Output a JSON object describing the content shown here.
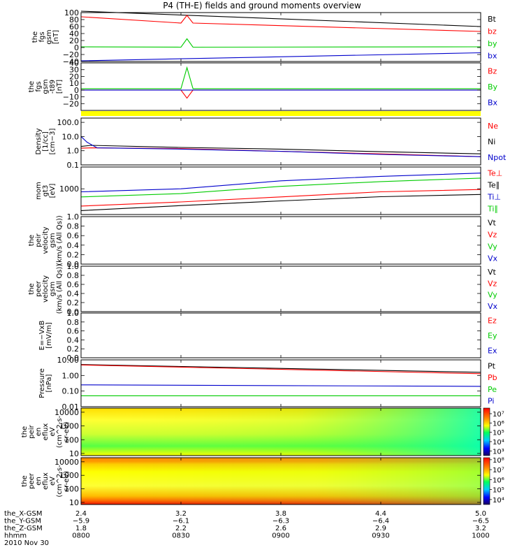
{
  "title": "P4 (TH-E) fields and ground moments overview",
  "colors": {
    "black": "#000000",
    "red": "#ff0000",
    "green": "#00cc00",
    "blue": "#0000cc",
    "yellow": "#ffff00",
    "axis": "#000000"
  },
  "chart_data": [
    {
      "type": "line",
      "ylabel": [
        "the",
        "fgs",
        "gsm",
        "[nT]"
      ],
      "ylim": [
        -40,
        100
      ],
      "yticks": [
        "100",
        "80",
        "60",
        "40",
        "20",
        "0",
        "−20",
        "−40"
      ],
      "ytick_values": [
        100,
        80,
        60,
        40,
        20,
        0,
        -20,
        -40
      ],
      "series": [
        {
          "name": "Bt",
          "color": "black",
          "x": [
            8.0,
            10.0
          ],
          "values": [
            104,
            60
          ]
        },
        {
          "name": "bz",
          "color": "red",
          "x": [
            8.0,
            8.5,
            8.53,
            8.56,
            10.0
          ],
          "values": [
            88,
            70,
            92,
            70,
            46
          ]
        },
        {
          "name": "by",
          "color": "green",
          "x": [
            8.0,
            8.5,
            8.53,
            8.56,
            10.0
          ],
          "values": [
            2,
            1,
            25,
            1,
            2
          ]
        },
        {
          "name": "bx",
          "color": "blue",
          "x": [
            8.0,
            10.0
          ],
          "values": [
            -38,
            -15
          ]
        }
      ]
    },
    {
      "type": "line",
      "ylabel": [
        "the",
        "fgs",
        "gsm",
        "-t89",
        "[nT]"
      ],
      "ylim": [
        -30,
        40
      ],
      "yticks": [
        "40",
        "30",
        "20",
        "10",
        "0",
        "−10",
        "−20"
      ],
      "ytick_values": [
        40,
        30,
        20,
        10,
        0,
        -10,
        -20
      ],
      "series": [
        {
          "name": "Bz",
          "color": "red",
          "x": [
            8.0,
            8.5,
            8.53,
            8.56,
            10.0
          ],
          "values": [
            0,
            0,
            -12,
            0,
            0
          ]
        },
        {
          "name": "By",
          "color": "green",
          "x": [
            8.0,
            8.5,
            8.53,
            8.56,
            10.0
          ],
          "values": [
            2,
            2,
            33,
            2,
            2
          ]
        },
        {
          "name": "Bx",
          "color": "blue",
          "x": [
            8.0,
            10.0
          ],
          "values": [
            0,
            0
          ]
        }
      ]
    },
    {
      "type": "line",
      "ylabel": [
        "Density",
        "[1/cc]",
        "[cm−3]"
      ],
      "log": true,
      "ylim": [
        0.1,
        200
      ],
      "yticks": [
        "100.0",
        "10.0",
        "1.0",
        "0.1"
      ],
      "ytick_values": [
        100,
        10,
        1,
        0.1
      ],
      "series": [
        {
          "name": "Ne",
          "color": "red",
          "x": [
            8.0,
            8.05,
            8.5,
            9.0,
            9.5,
            10.0
          ],
          "values": [
            1.5,
            1.6,
            1.4,
            0.9,
            0.6,
            0.38
          ]
        },
        {
          "name": "Ni",
          "color": "black",
          "x": [
            8.0,
            8.05,
            8.5,
            9.0,
            9.5,
            10.0
          ],
          "values": [
            2.0,
            2.4,
            1.7,
            1.3,
            0.85,
            0.6
          ]
        },
        {
          "name": "Npot",
          "color": "blue",
          "x": [
            8.0,
            8.03,
            8.08,
            8.5,
            9.0,
            9.5,
            10.0
          ],
          "values": [
            10,
            4.0,
            1.6,
            1.3,
            0.9,
            0.55,
            0.38
          ]
        }
      ]
    },
    {
      "type": "line",
      "ylabel": [
        "mom",
        "gt3",
        "[eV]"
      ],
      "log": true,
      "ylim": [
        150,
        5000
      ],
      "yticks": [
        "1000"
      ],
      "ytick_values": [
        1000
      ],
      "series": [
        {
          "name": "Te⊥",
          "color": "red",
          "x": [
            8.0,
            8.5,
            9.0,
            9.5,
            10.0
          ],
          "values": [
            280,
            380,
            550,
            800,
            950
          ]
        },
        {
          "name": "Te∥",
          "color": "black",
          "x": [
            8.0,
            8.5,
            9.0,
            9.5,
            10.0
          ],
          "values": [
            200,
            290,
            410,
            560,
            660
          ]
        },
        {
          "name": "Ti⊥",
          "color": "blue",
          "x": [
            8.0,
            8.5,
            9.0,
            9.5,
            10.0
          ],
          "values": [
            800,
            1000,
            1800,
            2500,
            3200
          ]
        },
        {
          "name": "Ti∥",
          "color": "green",
          "x": [
            8.0,
            8.5,
            9.0,
            9.5,
            10.0
          ],
          "values": [
            550,
            700,
            1200,
            1700,
            2200
          ]
        }
      ]
    },
    {
      "type": "line",
      "ylabel": [
        "the",
        "peir",
        "velocity",
        "gsm",
        "(km/s (All Qs))"
      ],
      "ylim": [
        0,
        1
      ],
      "yticks": [
        "1.0",
        "0.8",
        "0.6",
        "0.4",
        "0.2",
        "0.0"
      ],
      "ytick_values": [
        1.0,
        0.8,
        0.6,
        0.4,
        0.2,
        0.0
      ],
      "legend": [
        {
          "name": "Vt",
          "color": "black"
        },
        {
          "name": "Vz",
          "color": "red"
        },
        {
          "name": "Vy",
          "color": "green"
        },
        {
          "name": "Vx",
          "color": "blue"
        }
      ]
    },
    {
      "type": "line",
      "ylabel": [
        "the",
        "peer",
        "velocity",
        "gsm",
        "(km/s (All Qs))"
      ],
      "ylim": [
        0,
        1
      ],
      "yticks": [
        "1.0",
        "0.8",
        "0.6",
        "0.4",
        "0.2",
        "0.0"
      ],
      "ytick_values": [
        1.0,
        0.8,
        0.6,
        0.4,
        0.2,
        0.0
      ],
      "legend": [
        {
          "name": "Vt",
          "color": "black"
        },
        {
          "name": "Vz",
          "color": "red"
        },
        {
          "name": "Vy",
          "color": "green"
        },
        {
          "name": "Vx",
          "color": "blue"
        }
      ]
    },
    {
      "type": "line",
      "ylabel": [
        "E=−VxB",
        "[mV/m]"
      ],
      "ylim": [
        0,
        1
      ],
      "yticks": [
        "1.0",
        "0.8",
        "0.6",
        "0.4",
        "0.2",
        "0.0"
      ],
      "ytick_values": [
        1.0,
        0.8,
        0.6,
        0.4,
        0.2,
        0.0
      ],
      "legend": [
        {
          "name": "Ez",
          "color": "red"
        },
        {
          "name": "Ey",
          "color": "green"
        },
        {
          "name": "Ex",
          "color": "blue"
        }
      ]
    },
    {
      "type": "line",
      "ylabel": [
        "Pressure",
        "[nPa]"
      ],
      "log": true,
      "ylim": [
        0.01,
        10
      ],
      "yticks": [
        "10.00",
        "1.00",
        "0.10",
        "0.01"
      ],
      "ytick_values": [
        10,
        1,
        0.1,
        0.01
      ],
      "series": [
        {
          "name": "Pt",
          "color": "black",
          "x": [
            8.0,
            10.0
          ],
          "values": [
            5.0,
            1.6
          ]
        },
        {
          "name": "Pb",
          "color": "red",
          "x": [
            8.0,
            10.0
          ],
          "values": [
            4.7,
            1.3
          ]
        },
        {
          "name": "Pe",
          "color": "green",
          "x": [
            8.0,
            10.0
          ],
          "values": [
            0.05,
            0.05
          ]
        },
        {
          "name": "Pi",
          "color": "blue",
          "x": [
            8.0,
            10.0
          ],
          "values": [
            0.25,
            0.2
          ]
        }
      ]
    },
    {
      "type": "heatmap",
      "ylabel": [
        "the",
        "peir",
        "en",
        "eflux",
        "eV",
        "(cm^2-s-",
        "sr-eV)"
      ],
      "log": true,
      "ylim": [
        7,
        20000
      ],
      "yticks": [
        "10000",
        "1000",
        "100",
        "10"
      ],
      "ytick_values": [
        10000,
        1000,
        100,
        10
      ],
      "colorbar": {
        "ticks": [
          "10⁷",
          "10⁶",
          "10⁵",
          "10⁴",
          "10³"
        ],
        "tick_values": [
          7,
          6,
          5,
          4,
          3
        ],
        "range": [
          2.5,
          7.6
        ]
      }
    },
    {
      "type": "heatmap",
      "ylabel": [
        "the",
        "peer",
        "en",
        "eflux",
        "eV",
        "(cm^2-s-",
        "sr-eV)"
      ],
      "log": true,
      "ylim": [
        7,
        20000
      ],
      "yticks": [
        "10000",
        "1000",
        "100",
        "10"
      ],
      "ytick_values": [
        10000,
        1000,
        100,
        10
      ],
      "colorbar": {
        "ticks": [
          "10⁸",
          "10⁷",
          "10⁶",
          "10⁵",
          "10⁴"
        ],
        "tick_values": [
          8,
          7,
          6,
          5,
          4
        ],
        "range": [
          3.5,
          8.2
        ]
      }
    }
  ],
  "time_axis": {
    "x_range": [
      8.0,
      10.0
    ],
    "tick_values": [
      8.0,
      8.5,
      9.0,
      9.5,
      10.0
    ],
    "rows": [
      {
        "label": "the_X-GSM",
        "values": [
          "2.4",
          "3.2",
          "3.8",
          "4.4",
          "5.0"
        ]
      },
      {
        "label": "the_Y-GSM",
        "values": [
          "−5.9",
          "−6.1",
          "−6.3",
          "−6.4",
          "−6.5"
        ]
      },
      {
        "label": "the_Z-GSM",
        "values": [
          "1.8",
          "2.2",
          "2.6",
          "2.9",
          "3.2"
        ]
      },
      {
        "label": "hhmm",
        "values": [
          "0800",
          "0830",
          "0900",
          "0930",
          "1000"
        ]
      }
    ],
    "date": "2010 Nov 30"
  }
}
